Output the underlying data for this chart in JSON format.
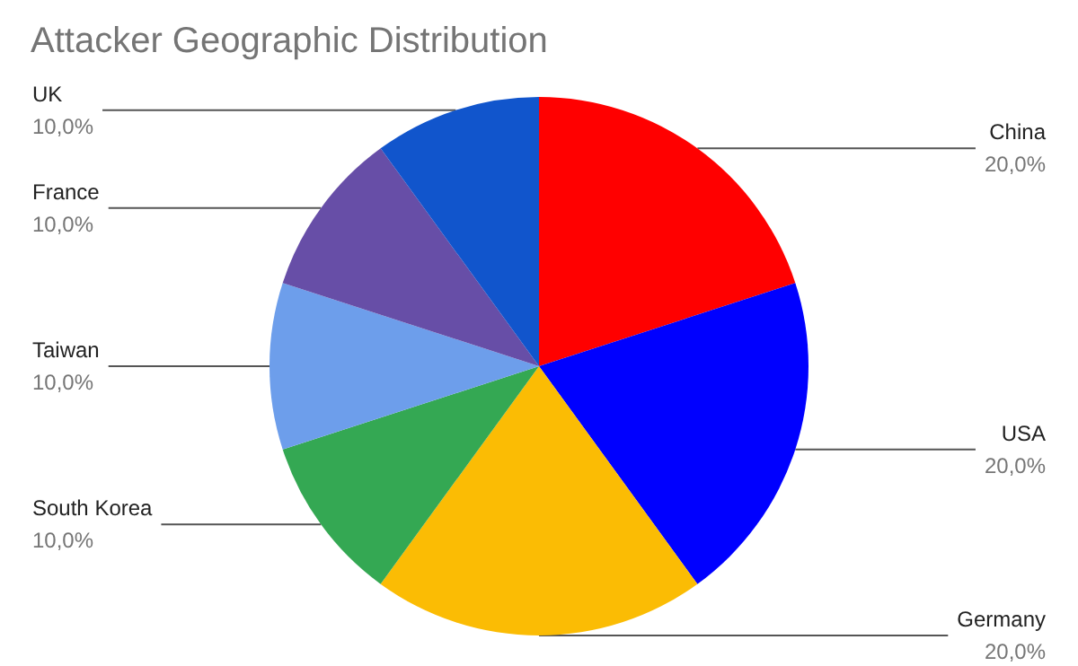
{
  "chart_data": {
    "type": "pie",
    "title": "Attacker Geographic Distribution",
    "categories": [
      "China",
      "USA",
      "Germany",
      "South Korea",
      "Taiwan",
      "France",
      "UK"
    ],
    "values": [
      20,
      20,
      20,
      10,
      10,
      10,
      10
    ],
    "colors": [
      "#ff0000",
      "#0000ff",
      "#fbbc04",
      "#34a853",
      "#6d9eeb",
      "#674ea7",
      "#1155cc"
    ],
    "value_labels": [
      "20,0%",
      "20,0%",
      "20,0%",
      "10,0%",
      "10,0%",
      "10,0%",
      "10,0%"
    ],
    "legend": false
  }
}
